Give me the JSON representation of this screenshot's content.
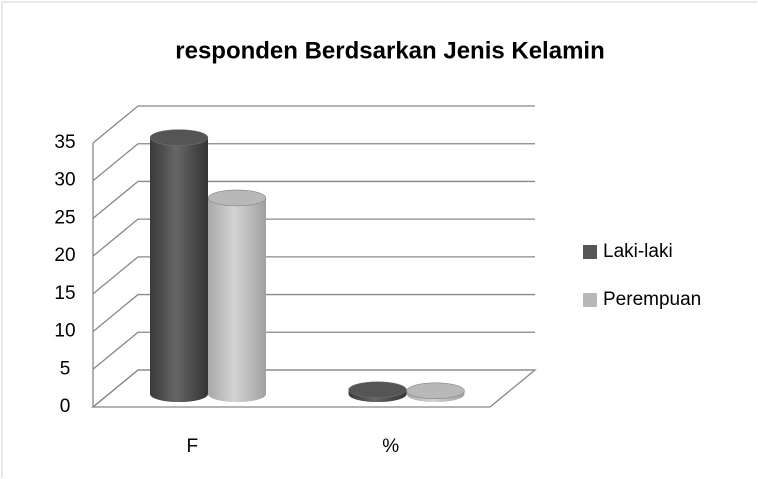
{
  "chart_data": {
    "type": "bar3d",
    "title": "responden Berdsarkan Jenis Kelamin",
    "categories": [
      "F",
      "%"
    ],
    "series": [
      {
        "name": "Laki-laki",
        "color": "#555555",
        "values": [
          34,
          0.57
        ]
      },
      {
        "name": "Perempuan",
        "color": "#b8b8b8",
        "values": [
          26,
          0.43
        ]
      }
    ],
    "ylim": [
      0,
      35
    ],
    "yticks": [
      0,
      5,
      10,
      15,
      20,
      25,
      30,
      35
    ],
    "grid": true,
    "legend": "right"
  }
}
